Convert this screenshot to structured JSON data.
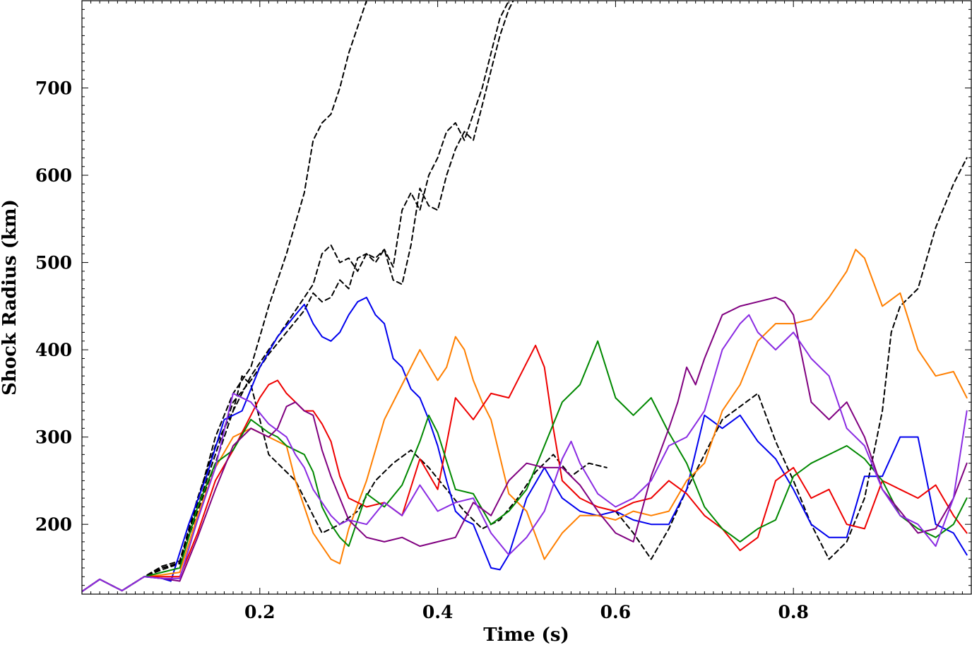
{
  "chart_data": {
    "type": "line",
    "title": "",
    "xlabel": "Time (s)",
    "ylabel": "Shock Radius (km)",
    "xlim": [
      0.0,
      1.0
    ],
    "ylim": [
      120,
      800
    ],
    "xticks": [
      0.2,
      0.4,
      0.6,
      0.8
    ],
    "xtick_labels": [
      "0.2",
      "0.4",
      "0.6",
      "0.8"
    ],
    "yticks": [
      200,
      300,
      400,
      500,
      600,
      700
    ],
    "ytick_labels": [
      "200",
      "300",
      "400",
      "500",
      "600",
      "700"
    ],
    "legend": "none",
    "grid": false,
    "series": [
      {
        "name": "dashed-1",
        "color": "#000000",
        "style": "dashed",
        "x": [
          0.0,
          0.02,
          0.045,
          0.07,
          0.09,
          0.11,
          0.13,
          0.15,
          0.17,
          0.19,
          0.21,
          0.23,
          0.25,
          0.26,
          0.27,
          0.28,
          0.29,
          0.3,
          0.32
        ],
        "y": [
          123,
          137,
          124,
          140,
          150,
          155,
          225,
          300,
          350,
          380,
          450,
          510,
          580,
          640,
          660,
          670,
          700,
          740,
          800
        ]
      },
      {
        "name": "dashed-2",
        "color": "#000000",
        "style": "dashed",
        "x": [
          0.0,
          0.02,
          0.045,
          0.07,
          0.09,
          0.11,
          0.13,
          0.15,
          0.17,
          0.19,
          0.21,
          0.23,
          0.25,
          0.26,
          0.27,
          0.28,
          0.29,
          0.3,
          0.31,
          0.32,
          0.33,
          0.34,
          0.35,
          0.36,
          0.37,
          0.38,
          0.39,
          0.4,
          0.41,
          0.42,
          0.43,
          0.44,
          0.45,
          0.46,
          0.47,
          0.48
        ],
        "y": [
          123,
          137,
          124,
          140,
          152,
          158,
          230,
          290,
          330,
          370,
          400,
          430,
          460,
          475,
          510,
          520,
          500,
          505,
          490,
          510,
          505,
          515,
          495,
          560,
          580,
          560,
          600,
          620,
          650,
          660,
          640,
          670,
          700,
          740,
          780,
          800
        ]
      },
      {
        "name": "dashed-3",
        "color": "#000000",
        "style": "dashed",
        "x": [
          0.0,
          0.02,
          0.045,
          0.07,
          0.09,
          0.11,
          0.13,
          0.15,
          0.17,
          0.19,
          0.21,
          0.23,
          0.25,
          0.26,
          0.27,
          0.28,
          0.29,
          0.3,
          0.31,
          0.32,
          0.33,
          0.34,
          0.35,
          0.36,
          0.37,
          0.38,
          0.39,
          0.4,
          0.41,
          0.42,
          0.43,
          0.44,
          0.45,
          0.46,
          0.47,
          0.48,
          0.485
        ],
        "y": [
          123,
          137,
          124,
          140,
          150,
          156,
          220,
          280,
          340,
          365,
          395,
          420,
          445,
          465,
          455,
          460,
          480,
          470,
          505,
          510,
          500,
          515,
          480,
          475,
          520,
          585,
          565,
          560,
          600,
          630,
          650,
          640,
          680,
          720,
          760,
          790,
          800
        ]
      },
      {
        "name": "dashed-4",
        "color": "#000000",
        "style": "dashed",
        "x": [
          0.0,
          0.02,
          0.045,
          0.07,
          0.09,
          0.11,
          0.13,
          0.15,
          0.17,
          0.18,
          0.19,
          0.2,
          0.21,
          0.22,
          0.23,
          0.24,
          0.25,
          0.27,
          0.29,
          0.31,
          0.33,
          0.35,
          0.37,
          0.39,
          0.41,
          0.43,
          0.45,
          0.47,
          0.49,
          0.51,
          0.53,
          0.55,
          0.57,
          0.59
        ],
        "y": [
          123,
          137,
          124,
          140,
          148,
          155,
          215,
          270,
          330,
          370,
          360,
          320,
          280,
          270,
          260,
          250,
          230,
          190,
          200,
          215,
          250,
          270,
          285,
          265,
          240,
          215,
          195,
          205,
          230,
          260,
          280,
          255,
          270,
          265
        ]
      },
      {
        "name": "dashed-5",
        "color": "#000000",
        "style": "dashed",
        "x": [
          0.6,
          0.62,
          0.64,
          0.66,
          0.68,
          0.7,
          0.72,
          0.74,
          0.76,
          0.78,
          0.8,
          0.82,
          0.84,
          0.86,
          0.88,
          0.9,
          0.91,
          0.92,
          0.94,
          0.96,
          0.98,
          0.995
        ],
        "y": [
          215,
          190,
          160,
          195,
          240,
          280,
          320,
          335,
          350,
          295,
          250,
          200,
          160,
          180,
          230,
          330,
          420,
          450,
          470,
          540,
          590,
          620
        ]
      },
      {
        "name": "blue",
        "color": "#0000ee",
        "style": "solid",
        "x": [
          0.0,
          0.02,
          0.045,
          0.07,
          0.09,
          0.1,
          0.12,
          0.14,
          0.16,
          0.18,
          0.2,
          0.22,
          0.24,
          0.25,
          0.26,
          0.27,
          0.28,
          0.29,
          0.3,
          0.31,
          0.32,
          0.33,
          0.34,
          0.35,
          0.36,
          0.37,
          0.38,
          0.39,
          0.4,
          0.41,
          0.42,
          0.43,
          0.44,
          0.45,
          0.46,
          0.47,
          0.48,
          0.5,
          0.52,
          0.54,
          0.56,
          0.58,
          0.6,
          0.62,
          0.64,
          0.66,
          0.68,
          0.7,
          0.72,
          0.74,
          0.76,
          0.78,
          0.8,
          0.82,
          0.84,
          0.86,
          0.88,
          0.9,
          0.92,
          0.94,
          0.96,
          0.98,
          0.995
        ],
        "y": [
          123,
          137,
          124,
          140,
          138,
          135,
          200,
          255,
          320,
          330,
          380,
          415,
          440,
          452,
          430,
          415,
          410,
          420,
          440,
          455,
          460,
          440,
          430,
          390,
          380,
          355,
          345,
          320,
          290,
          250,
          215,
          205,
          200,
          175,
          150,
          148,
          165,
          230,
          265,
          230,
          215,
          210,
          215,
          205,
          200,
          200,
          240,
          325,
          310,
          325,
          295,
          275,
          240,
          200,
          185,
          185,
          255,
          255,
          300,
          300,
          200,
          190,
          165
        ]
      },
      {
        "name": "orange",
        "color": "#ff7f00",
        "style": "solid",
        "x": [
          0.0,
          0.02,
          0.045,
          0.07,
          0.09,
          0.11,
          0.13,
          0.15,
          0.17,
          0.19,
          0.21,
          0.23,
          0.24,
          0.25,
          0.26,
          0.27,
          0.28,
          0.29,
          0.3,
          0.32,
          0.34,
          0.36,
          0.38,
          0.4,
          0.41,
          0.42,
          0.43,
          0.44,
          0.45,
          0.46,
          0.48,
          0.5,
          0.52,
          0.54,
          0.56,
          0.58,
          0.6,
          0.62,
          0.64,
          0.66,
          0.68,
          0.7,
          0.72,
          0.74,
          0.76,
          0.78,
          0.8,
          0.82,
          0.84,
          0.86,
          0.87,
          0.88,
          0.9,
          0.92,
          0.94,
          0.96,
          0.98,
          0.995
        ],
        "y": [
          123,
          137,
          124,
          140,
          142,
          145,
          210,
          265,
          300,
          310,
          300,
          290,
          250,
          220,
          190,
          175,
          160,
          155,
          195,
          250,
          320,
          360,
          400,
          365,
          380,
          415,
          400,
          365,
          340,
          320,
          235,
          215,
          160,
          190,
          210,
          210,
          205,
          215,
          210,
          215,
          250,
          270,
          330,
          360,
          410,
          430,
          430,
          435,
          460,
          490,
          515,
          505,
          450,
          465,
          400,
          370,
          375,
          345
        ]
      },
      {
        "name": "red",
        "color": "#ee0000",
        "style": "solid",
        "x": [
          0.0,
          0.02,
          0.045,
          0.07,
          0.09,
          0.11,
          0.13,
          0.15,
          0.17,
          0.19,
          0.2,
          0.21,
          0.22,
          0.23,
          0.24,
          0.25,
          0.26,
          0.27,
          0.28,
          0.29,
          0.3,
          0.32,
          0.34,
          0.36,
          0.38,
          0.4,
          0.42,
          0.44,
          0.46,
          0.48,
          0.5,
          0.51,
          0.52,
          0.53,
          0.54,
          0.56,
          0.58,
          0.6,
          0.62,
          0.64,
          0.66,
          0.68,
          0.7,
          0.72,
          0.74,
          0.76,
          0.78,
          0.8,
          0.82,
          0.84,
          0.86,
          0.88,
          0.9,
          0.92,
          0.94,
          0.96,
          0.98,
          0.995
        ],
        "y": [
          123,
          137,
          124,
          140,
          140,
          140,
          190,
          250,
          285,
          325,
          345,
          360,
          365,
          350,
          340,
          330,
          330,
          315,
          295,
          255,
          230,
          220,
          225,
          210,
          275,
          240,
          345,
          320,
          350,
          345,
          385,
          405,
          380,
          310,
          250,
          230,
          220,
          215,
          225,
          230,
          250,
          235,
          210,
          195,
          170,
          185,
          250,
          265,
          230,
          240,
          200,
          195,
          250,
          240,
          230,
          245,
          210,
          190
        ]
      },
      {
        "name": "green",
        "color": "#008800",
        "style": "solid",
        "x": [
          0.0,
          0.02,
          0.045,
          0.07,
          0.09,
          0.11,
          0.13,
          0.15,
          0.17,
          0.19,
          0.21,
          0.22,
          0.23,
          0.24,
          0.25,
          0.26,
          0.27,
          0.28,
          0.29,
          0.3,
          0.32,
          0.34,
          0.36,
          0.38,
          0.39,
          0.4,
          0.42,
          0.44,
          0.46,
          0.48,
          0.5,
          0.52,
          0.54,
          0.56,
          0.57,
          0.58,
          0.6,
          0.62,
          0.64,
          0.66,
          0.68,
          0.7,
          0.72,
          0.74,
          0.76,
          0.78,
          0.8,
          0.82,
          0.84,
          0.86,
          0.88,
          0.9,
          0.92,
          0.94,
          0.96,
          0.98,
          0.995
        ],
        "y": [
          123,
          137,
          124,
          140,
          145,
          150,
          220,
          270,
          285,
          320,
          305,
          300,
          290,
          285,
          280,
          260,
          220,
          200,
          185,
          175,
          235,
          220,
          245,
          295,
          325,
          305,
          240,
          235,
          200,
          215,
          240,
          290,
          340,
          360,
          385,
          410,
          345,
          325,
          345,
          305,
          270,
          220,
          195,
          180,
          195,
          205,
          255,
          270,
          280,
          290,
          275,
          250,
          210,
          195,
          185,
          200,
          230
        ]
      },
      {
        "name": "purple",
        "color": "#800080",
        "style": "solid",
        "x": [
          0.0,
          0.02,
          0.045,
          0.07,
          0.09,
          0.11,
          0.13,
          0.15,
          0.17,
          0.19,
          0.21,
          0.22,
          0.23,
          0.24,
          0.25,
          0.26,
          0.27,
          0.28,
          0.29,
          0.3,
          0.32,
          0.34,
          0.36,
          0.38,
          0.4,
          0.42,
          0.44,
          0.46,
          0.48,
          0.5,
          0.52,
          0.54,
          0.56,
          0.58,
          0.6,
          0.62,
          0.64,
          0.66,
          0.67,
          0.68,
          0.69,
          0.7,
          0.72,
          0.74,
          0.76,
          0.78,
          0.79,
          0.8,
          0.82,
          0.84,
          0.86,
          0.88,
          0.9,
          0.92,
          0.94,
          0.96,
          0.98,
          0.995
        ],
        "y": [
          123,
          137,
          124,
          140,
          138,
          135,
          185,
          240,
          290,
          310,
          300,
          310,
          335,
          340,
          330,
          325,
          285,
          255,
          230,
          205,
          185,
          180,
          185,
          175,
          180,
          185,
          225,
          210,
          250,
          270,
          265,
          265,
          245,
          215,
          190,
          180,
          255,
          310,
          340,
          380,
          360,
          390,
          440,
          450,
          455,
          460,
          455,
          440,
          340,
          320,
          340,
          300,
          240,
          215,
          190,
          195,
          230,
          270
        ]
      },
      {
        "name": "violet",
        "color": "#8a2be2",
        "style": "solid",
        "x": [
          0.0,
          0.02,
          0.045,
          0.07,
          0.09,
          0.11,
          0.13,
          0.15,
          0.17,
          0.19,
          0.21,
          0.23,
          0.24,
          0.25,
          0.26,
          0.27,
          0.28,
          0.29,
          0.3,
          0.32,
          0.34,
          0.36,
          0.38,
          0.4,
          0.42,
          0.44,
          0.46,
          0.48,
          0.5,
          0.52,
          0.54,
          0.55,
          0.56,
          0.58,
          0.6,
          0.62,
          0.64,
          0.66,
          0.68,
          0.7,
          0.72,
          0.74,
          0.75,
          0.76,
          0.78,
          0.8,
          0.82,
          0.84,
          0.86,
          0.88,
          0.9,
          0.92,
          0.94,
          0.96,
          0.98,
          0.995
        ],
        "y": [
          123,
          137,
          124,
          140,
          138,
          138,
          205,
          265,
          350,
          340,
          315,
          300,
          280,
          265,
          240,
          225,
          210,
          200,
          205,
          200,
          225,
          210,
          245,
          215,
          225,
          230,
          190,
          165,
          185,
          215,
          275,
          295,
          270,
          235,
          220,
          230,
          250,
          290,
          300,
          330,
          400,
          430,
          440,
          420,
          400,
          420,
          390,
          370,
          310,
          290,
          240,
          210,
          200,
          175,
          230,
          330
        ]
      }
    ]
  }
}
